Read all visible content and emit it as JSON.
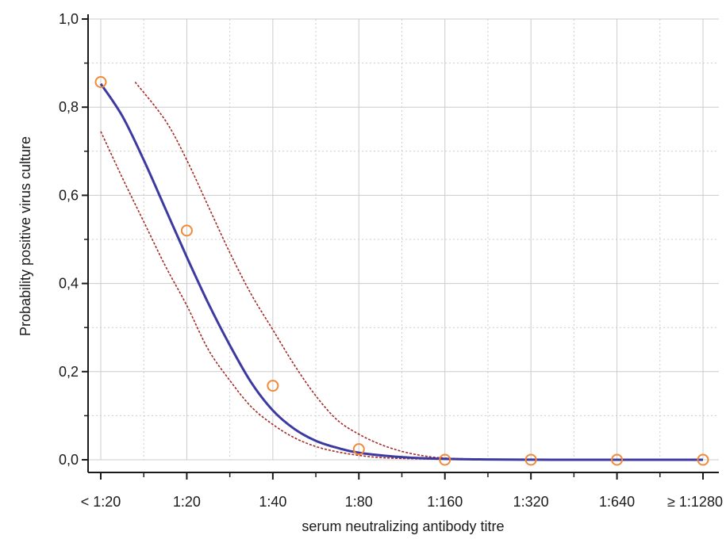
{
  "chart_data": {
    "type": "line",
    "title": "",
    "xlabel": "serum neutralizing antibody titre",
    "ylabel": "Probability positive virus culture",
    "categories": [
      "< 1:20",
      "1:20",
      "1:40",
      "1:80",
      "1:160",
      "1:320",
      "1:640",
      "≥ 1:1280"
    ],
    "ylim": [
      0,
      1.0
    ],
    "yticks": [
      0.0,
      0.2,
      0.4,
      0.6,
      0.8,
      1.0
    ],
    "ytick_labels": [
      "0,0",
      "0,2",
      "0,4",
      "0,6",
      "0,8",
      "1,0"
    ],
    "grid": true,
    "legend": "none",
    "observed": {
      "x": [
        "< 1:20",
        "1:20",
        "1:40",
        "1:80",
        "1:160",
        "1:320",
        "1:640",
        "≥ 1:1280"
      ],
      "values": [
        0.857,
        0.52,
        0.168,
        0.024,
        0.0,
        0.0,
        0.0,
        0.0
      ]
    },
    "fitted_curve": {
      "x": [
        0,
        0.25,
        0.5,
        0.75,
        1.0,
        1.25,
        1.5,
        1.75,
        2.0,
        2.25,
        2.5,
        2.75,
        3.0,
        3.5,
        4.0,
        4.5,
        5.0,
        5.5,
        6.0,
        6.5,
        7.0
      ],
      "values": [
        0.853,
        0.78,
        0.68,
        0.57,
        0.46,
        0.355,
        0.26,
        0.175,
        0.112,
        0.07,
        0.043,
        0.027,
        0.016,
        0.006,
        0.002,
        0.0007,
        0.0002,
        0.0,
        0.0,
        0.0,
        0.0
      ]
    },
    "ci_upper": {
      "x": [
        0.4,
        0.75,
        1.0,
        1.25,
        1.5,
        1.75,
        2.0,
        2.25,
        2.5,
        2.75,
        3.0,
        3.25,
        3.5,
        3.75,
        4.0,
        4.5,
        5.0,
        5.5,
        6.0,
        6.5,
        7.0
      ],
      "values": [
        0.857,
        0.77,
        0.68,
        0.575,
        0.47,
        0.375,
        0.295,
        0.215,
        0.145,
        0.09,
        0.058,
        0.035,
        0.019,
        0.009,
        0.004,
        0.001,
        0.0003,
        0.0,
        0.0,
        0.0,
        0.0
      ]
    },
    "ci_lower": {
      "x": [
        0,
        0.25,
        0.5,
        0.75,
        1.0,
        1.25,
        1.5,
        1.75,
        2.0,
        2.25,
        2.5,
        2.75,
        3.0,
        3.25,
        3.5,
        4.0,
        4.5,
        5.0,
        5.5,
        6.0,
        6.5,
        7.0
      ],
      "values": [
        0.745,
        0.64,
        0.54,
        0.44,
        0.35,
        0.25,
        0.18,
        0.12,
        0.08,
        0.05,
        0.03,
        0.018,
        0.01,
        0.005,
        0.003,
        0.001,
        0.0003,
        0.0001,
        0.0,
        0.0,
        0.0,
        0.0
      ]
    },
    "colors": {
      "curve": "#3c3aa0",
      "ci": "#a42a24",
      "markers": "#ef8a3a",
      "grid": "#cccccc",
      "axis": "#1a1a1a"
    }
  }
}
